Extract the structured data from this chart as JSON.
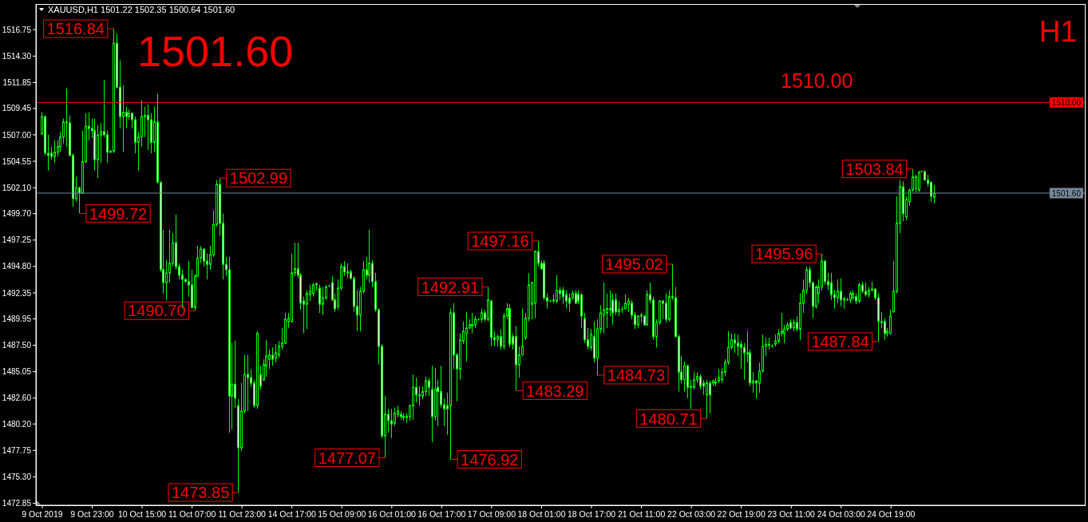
{
  "chart_data": {
    "type": "candlestick",
    "title": "XAUUSD,H1 1501.22 1502.35 1500.64 1501.60",
    "color": "#00ff00",
    "categories": [
      "9 Oct 2019",
      null,
      null,
      null,
      null,
      null,
      null,
      null,
      null,
      null,
      null,
      null,
      null,
      null,
      null,
      null,
      "9 Oct 23:00",
      null,
      null,
      null,
      null,
      null,
      null,
      null,
      null,
      null,
      null,
      null,
      null,
      null,
      null,
      null,
      "10 Oct 15:00",
      null,
      null,
      null,
      null,
      null,
      null,
      null,
      null,
      null,
      null,
      null,
      null,
      null,
      null,
      null,
      "11 Oct 07:00",
      null,
      null,
      null,
      null,
      null,
      null,
      null,
      null,
      null,
      null,
      null,
      null,
      null,
      null,
      null,
      "11 Oct 23:00",
      null,
      null,
      null,
      null,
      null,
      null,
      null,
      null,
      null,
      null,
      null,
      null,
      null,
      null,
      null,
      "14 Oct 17:00",
      null,
      null,
      null,
      null,
      null,
      null,
      null,
      null,
      null,
      null,
      null,
      null,
      null,
      null,
      null,
      "15 Oct 09:00",
      null,
      null,
      null,
      null,
      null,
      null,
      null,
      null,
      null,
      null,
      null,
      null,
      null,
      null,
      null,
      "16 Oct 01:00",
      null,
      null,
      null,
      null,
      null,
      null,
      null,
      null,
      null,
      null,
      null,
      null,
      null,
      null,
      null,
      "16 Oct 17:00",
      null,
      null,
      null,
      null,
      null,
      null,
      null,
      null,
      null,
      null,
      null,
      null,
      null,
      null,
      null,
      "17 Oct 09:00",
      null,
      null,
      null,
      null,
      null,
      null,
      null,
      null,
      null,
      null,
      null,
      null,
      null,
      null,
      null,
      "18 Oct 01:00",
      null,
      null,
      null,
      null,
      null,
      null,
      null,
      null,
      null,
      null,
      null,
      null,
      null,
      null,
      null,
      "18 Oct 17:00",
      null,
      null,
      null,
      null,
      null,
      null,
      null,
      null,
      null,
      null,
      null,
      null,
      null,
      null,
      null,
      "21 Oct 11:00",
      null,
      null,
      null,
      null,
      null,
      null,
      null,
      null,
      null,
      null,
      null,
      null,
      null,
      null,
      null,
      "22 Oct 03:00",
      null,
      null,
      null,
      null,
      null,
      null,
      null,
      null,
      null,
      null,
      null,
      null,
      null,
      null,
      null,
      "22 Oct 19:00",
      null,
      null,
      null,
      null,
      null,
      null,
      null,
      null,
      null,
      null,
      null,
      null,
      null,
      null,
      null,
      "23 Oct 11:00",
      null,
      null,
      null,
      null,
      null,
      null,
      null,
      null,
      null,
      null,
      null,
      null,
      null,
      null,
      null,
      "24 Oct 03:00",
      null,
      null,
      null,
      null,
      null,
      null,
      null,
      null,
      null,
      null,
      null,
      null,
      null,
      null,
      null,
      "24 Oct 19:00",
      null,
      null,
      null,
      null,
      null,
      null,
      null,
      null,
      null,
      null,
      null,
      null,
      null,
      null
    ],
    "ohlc": [
      [
        1507.1,
        1509.1,
        1507.0,
        1508.7
      ],
      [
        1508.7,
        1508.8,
        1505.1,
        1505.3
      ],
      [
        1505.3,
        1507.0,
        1503.7,
        1505.1
      ],
      [
        1505.3,
        1505.9,
        1504.7,
        1505.0
      ],
      [
        1505.0,
        1506.5,
        1504.4,
        1505.4
      ],
      [
        1505.4,
        1506.5,
        1505.0,
        1505.9
      ],
      [
        1505.9,
        1507.3,
        1505.4,
        1506.8
      ],
      [
        1506.8,
        1508.5,
        1506.2,
        1508.2
      ],
      [
        1508.2,
        1511.3,
        1505.9,
        1508.1
      ],
      [
        1508.1,
        1508.8,
        1505.0,
        1505.1
      ],
      [
        1505.1,
        1505.3,
        1500.3,
        1501.1
      ],
      [
        1501.1,
        1503.1,
        1500.8,
        1502.1
      ],
      [
        1502.1,
        1502.2,
        1499.72,
        1501.6
      ],
      [
        1501.6,
        1507.4,
        1501.6,
        1504.5
      ],
      [
        1504.5,
        1509.0,
        1504.4,
        1507.8
      ],
      [
        1507.8,
        1509.1,
        1506.5,
        1507.6
      ],
      [
        1507.6,
        1508.5,
        1506.7,
        1507.4
      ],
      [
        1507.4,
        1508.5,
        1503.7,
        1504.7
      ],
      [
        1504.7,
        1507.9,
        1503.0,
        1507.0
      ],
      [
        1507.0,
        1508.1,
        1504.4,
        1507.3
      ],
      [
        1507.3,
        1512.1,
        1506.8,
        1507.0
      ],
      [
        1507.0,
        1507.4,
        1504.4,
        1505.4
      ],
      [
        1505.4,
        1505.6,
        1505.3,
        1505.5
      ],
      [
        1505.5,
        1516.84,
        1505.3,
        1515.5
      ],
      [
        1515.5,
        1516.4,
        1511.3,
        1511.4
      ],
      [
        1511.4,
        1513.9,
        1507.6,
        1508.7
      ],
      [
        1508.7,
        1511.6,
        1505.4,
        1509.1
      ],
      [
        1509.1,
        1509.6,
        1507.6,
        1508.7
      ],
      [
        1508.7,
        1509.4,
        1508.4,
        1509.0
      ],
      [
        1509.0,
        1509.1,
        1507.6,
        1508.4
      ],
      [
        1508.4,
        1508.7,
        1505.3,
        1506.3
      ],
      [
        1506.3,
        1507.3,
        1503.7,
        1506.8
      ],
      [
        1506.8,
        1510.2,
        1505.9,
        1508.7
      ],
      [
        1508.7,
        1509.6,
        1506.8,
        1508.8
      ],
      [
        1508.8,
        1509.8,
        1505.6,
        1508.4
      ],
      [
        1508.4,
        1509.0,
        1505.3,
        1506.3
      ],
      [
        1506.3,
        1509.6,
        1505.4,
        1508.2
      ],
      [
        1508.2,
        1510.8,
        1502.5,
        1502.6
      ],
      [
        1502.6,
        1502.7,
        1494.3,
        1494.5
      ],
      [
        1494.5,
        1498.2,
        1492.3,
        1493.3
      ],
      [
        1493.3,
        1495.4,
        1491.7,
        1494.2
      ],
      [
        1494.2,
        1498.2,
        1493.3,
        1495.1
      ],
      [
        1495.1,
        1497.9,
        1494.8,
        1497.0
      ],
      [
        1497.0,
        1499.6,
        1494.5,
        1494.8
      ],
      [
        1494.8,
        1495.1,
        1493.6,
        1494.0
      ],
      [
        1494.0,
        1494.5,
        1490.9,
        1493.6
      ],
      [
        1493.6,
        1493.7,
        1493.3,
        1493.4
      ],
      [
        1493.4,
        1495.3,
        1492.0,
        1493.1
      ],
      [
        1493.1,
        1494.5,
        1490.9,
        1491.0
      ],
      [
        1491.0,
        1494.1,
        1490.7,
        1493.9
      ],
      [
        1493.9,
        1496.7,
        1493.9,
        1495.6
      ],
      [
        1495.6,
        1496.7,
        1495.1,
        1496.4
      ],
      [
        1496.4,
        1496.5,
        1494.8,
        1495.3
      ],
      [
        1495.3,
        1496.0,
        1493.6,
        1495.0
      ],
      [
        1495.0,
        1496.7,
        1494.5,
        1495.9
      ],
      [
        1495.9,
        1500.0,
        1495.7,
        1498.7
      ],
      [
        1498.7,
        1502.8,
        1498.5,
        1502.4
      ],
      [
        1502.4,
        1502.99,
        1497.6,
        1498.8
      ],
      [
        1498.8,
        1499.7,
        1493.6,
        1495.0
      ],
      [
        1495.0,
        1495.7,
        1493.9,
        1494.5
      ],
      [
        1494.5,
        1495.7,
        1479.4,
        1482.8
      ],
      [
        1482.8,
        1487.7,
        1479.7,
        1483.9
      ],
      [
        1483.9,
        1487.9,
        1481.7,
        1482.6
      ],
      [
        1481.9,
        1482.5,
        1473.85,
        1478.0
      ],
      [
        1478.0,
        1484.0,
        1477.7,
        1481.4
      ],
      [
        1481.4,
        1486.6,
        1481.2,
        1484.8
      ],
      [
        1484.8,
        1486.6,
        1481.4,
        1484.5
      ],
      [
        1484.5,
        1485.3,
        1483.6,
        1484.0
      ],
      [
        1484.0,
        1484.3,
        1481.7,
        1481.9
      ],
      [
        1481.9,
        1488.8,
        1481.6,
        1488.6
      ],
      [
        1484.8,
        1485.6,
        1483.4,
        1483.7
      ],
      [
        1484.3,
        1486.2,
        1484.2,
        1485.7
      ],
      [
        1485.6,
        1488.0,
        1484.6,
        1486.5
      ],
      [
        1486.2,
        1487.1,
        1485.3,
        1486.6
      ],
      [
        1486.6,
        1487.3,
        1485.6,
        1486.2
      ],
      [
        1486.3,
        1487.6,
        1485.9,
        1486.8
      ],
      [
        1486.6,
        1487.9,
        1486.3,
        1487.4
      ],
      [
        1487.4,
        1489.1,
        1487.1,
        1487.7
      ],
      [
        1487.7,
        1490.5,
        1487.6,
        1489.9
      ],
      [
        1489.7,
        1490.5,
        1489.1,
        1490.0
      ],
      [
        1489.7,
        1496.0,
        1489.6,
        1494.2
      ],
      [
        1494.2,
        1497.0,
        1493.9,
        1494.6
      ],
      [
        1494.6,
        1497.0,
        1493.7,
        1494.0
      ],
      [
        1494.0,
        1494.2,
        1490.8,
        1491.4
      ],
      [
        1491.6,
        1492.0,
        1488.6,
        1491.3
      ],
      [
        1491.3,
        1492.6,
        1489.0,
        1492.3
      ],
      [
        1492.2,
        1493.1,
        1491.6,
        1492.5
      ],
      [
        1492.3,
        1493.3,
        1492.0,
        1493.1
      ],
      [
        1493.1,
        1493.3,
        1492.6,
        1493.2
      ],
      [
        1492.8,
        1493.1,
        1490.5,
        1491.3
      ],
      [
        1491.3,
        1492.9,
        1490.3,
        1491.9
      ],
      [
        1491.9,
        1493.1,
        1491.7,
        1492.9
      ],
      [
        1493.0,
        1493.1,
        1492.9,
        1493.0
      ],
      [
        1493.3,
        1493.9,
        1491.6,
        1491.7
      ],
      [
        1491.7,
        1492.3,
        1490.6,
        1490.9
      ],
      [
        1491.1,
        1493.6,
        1490.8,
        1492.8
      ],
      [
        1492.8,
        1495.1,
        1492.6,
        1494.8
      ],
      [
        1494.8,
        1495.3,
        1493.9,
        1494.3
      ],
      [
        1494.3,
        1495.1,
        1493.7,
        1494.2
      ],
      [
        1494.3,
        1494.5,
        1493.6,
        1493.7
      ],
      [
        1493.7,
        1493.9,
        1490.6,
        1491.1
      ],
      [
        1491.1,
        1492.6,
        1488.8,
        1490.3
      ],
      [
        1490.3,
        1492.9,
        1488.8,
        1492.5
      ],
      [
        1492.5,
        1495.3,
        1492.3,
        1494.5
      ],
      [
        1494.5,
        1495.7,
        1493.6,
        1494.0
      ],
      [
        1494.0,
        1498.2,
        1493.3,
        1495.1
      ],
      [
        1495.1,
        1495.4,
        1492.9,
        1493.4
      ],
      [
        1493.4,
        1494.2,
        1490.6,
        1490.8
      ],
      [
        1490.8,
        1490.9,
        1485.7,
        1487.4
      ],
      [
        1487.4,
        1487.6,
        1478.9,
        1479.1
      ],
      [
        1479.1,
        1482.8,
        1477.07,
        1481.1
      ],
      [
        1481.1,
        1481.6,
        1479.4,
        1480.5
      ],
      [
        1480.5,
        1481.6,
        1478.9,
        1480.2
      ],
      [
        1480.3,
        1481.7,
        1480.0,
        1481.2
      ],
      [
        1481.1,
        1481.9,
        1480.8,
        1481.4
      ],
      [
        1481.1,
        1481.4,
        1480.6,
        1480.9
      ],
      [
        1480.9,
        1481.2,
        1480.5,
        1480.8
      ],
      [
        1480.8,
        1481.2,
        1480.3,
        1480.9
      ],
      [
        1480.9,
        1482.0,
        1480.5,
        1481.9
      ],
      [
        1481.9,
        1484.8,
        1480.6,
        1483.6
      ],
      [
        1483.6,
        1484.5,
        1482.2,
        1482.9
      ],
      [
        1482.9,
        1483.7,
        1481.9,
        1482.8
      ],
      [
        1482.8,
        1483.7,
        1482.5,
        1483.2
      ],
      [
        1483.2,
        1484.6,
        1482.8,
        1484.2
      ],
      [
        1484.2,
        1484.5,
        1482.8,
        1483.6
      ],
      [
        1483.4,
        1485.6,
        1478.5,
        1480.9
      ],
      [
        1480.9,
        1485.4,
        1480.5,
        1483.4
      ],
      [
        1483.6,
        1484.3,
        1480.0,
        1483.2
      ],
      [
        1483.2,
        1485.6,
        1481.7,
        1482.0
      ],
      [
        1482.0,
        1482.6,
        1480.0,
        1481.6
      ],
      [
        1481.9,
        1483.1,
        1479.2,
        1481.6
      ],
      [
        1481.9,
        1490.9,
        1476.92,
        1490.5
      ],
      [
        1490.5,
        1491.4,
        1485.3,
        1486.6
      ],
      [
        1486.6,
        1486.8,
        1482.3,
        1485.3
      ],
      [
        1485.3,
        1488.6,
        1484.3,
        1488.0
      ],
      [
        1487.9,
        1489.7,
        1487.6,
        1488.8
      ],
      [
        1488.6,
        1490.6,
        1486.0,
        1489.1
      ],
      [
        1489.1,
        1489.9,
        1489.0,
        1489.4
      ],
      [
        1489.4,
        1490.5,
        1488.6,
        1489.3
      ],
      [
        1489.4,
        1490.2,
        1489.1,
        1489.9
      ],
      [
        1489.9,
        1490.0,
        1489.8,
        1489.9
      ],
      [
        1489.9,
        1490.9,
        1489.6,
        1490.5
      ],
      [
        1490.5,
        1490.8,
        1489.7,
        1489.9
      ],
      [
        1489.9,
        1492.91,
        1489.7,
        1491.7
      ],
      [
        1491.6,
        1491.7,
        1487.4,
        1488.2
      ],
      [
        1488.2,
        1488.8,
        1487.4,
        1488.0
      ],
      [
        1488.0,
        1488.5,
        1487.4,
        1488.3
      ],
      [
        1488.3,
        1489.0,
        1487.1,
        1487.4
      ],
      [
        1487.4,
        1490.5,
        1487.1,
        1490.2
      ],
      [
        1490.2,
        1491.4,
        1489.9,
        1490.9
      ],
      [
        1490.9,
        1491.3,
        1487.3,
        1487.6
      ],
      [
        1488.3,
        1488.6,
        1487.1,
        1487.6
      ],
      [
        1488.3,
        1489.3,
        1483.29,
        1485.7
      ],
      [
        1485.7,
        1487.4,
        1484.5,
        1486.6
      ],
      [
        1486.6,
        1490.9,
        1486.6,
        1487.4
      ],
      [
        1488.2,
        1490.5,
        1488.0,
        1490.0
      ],
      [
        1490.0,
        1494.2,
        1489.7,
        1493.1
      ],
      [
        1491.3,
        1493.4,
        1489.9,
        1493.3
      ],
      [
        1491.4,
        1496.3,
        1490.0,
        1496.2
      ],
      [
        1496.2,
        1497.16,
        1494.8,
        1495.1
      ],
      [
        1495.1,
        1495.4,
        1494.5,
        1494.6
      ],
      [
        1495.1,
        1495.4,
        1491.7,
        1491.9
      ],
      [
        1491.9,
        1492.3,
        1490.9,
        1491.6
      ],
      [
        1491.6,
        1491.7,
        1491.5,
        1491.6
      ],
      [
        1491.6,
        1492.2,
        1491.4,
        1491.7
      ],
      [
        1491.6,
        1494.0,
        1491.4,
        1492.6
      ],
      [
        1492.6,
        1492.9,
        1491.7,
        1492.3
      ],
      [
        1492.6,
        1492.9,
        1491.3,
        1492.0
      ],
      [
        1492.2,
        1492.6,
        1490.9,
        1491.6
      ],
      [
        1491.9,
        1492.3,
        1490.6,
        1491.4
      ],
      [
        1491.9,
        1492.6,
        1491.7,
        1492.3
      ],
      [
        1492.3,
        1492.6,
        1491.3,
        1491.4
      ],
      [
        1492.2,
        1492.6,
        1491.3,
        1491.6
      ],
      [
        1492.2,
        1492.3,
        1489.1,
        1490.2
      ],
      [
        1490.0,
        1490.5,
        1487.7,
        1488.0
      ],
      [
        1488.0,
        1489.1,
        1487.1,
        1487.4
      ],
      [
        1487.3,
        1489.0,
        1487.0,
        1488.5
      ],
      [
        1488.3,
        1489.7,
        1485.9,
        1486.3
      ],
      [
        1486.3,
        1489.9,
        1484.73,
        1489.0
      ],
      [
        1489.0,
        1491.2,
        1488.6,
        1490.5
      ],
      [
        1490.3,
        1493.3,
        1488.6,
        1490.8
      ],
      [
        1490.5,
        1492.3,
        1489.1,
        1490.9
      ],
      [
        1490.9,
        1492.6,
        1490.2,
        1490.8
      ],
      [
        1491.7,
        1492.3,
        1489.4,
        1490.5
      ],
      [
        1491.7,
        1492.3,
        1490.3,
        1490.6
      ],
      [
        1490.6,
        1491.6,
        1490.2,
        1490.8
      ],
      [
        1490.8,
        1491.1,
        1490.5,
        1490.8
      ],
      [
        1490.9,
        1492.2,
        1490.8,
        1491.4
      ],
      [
        1491.3,
        1491.9,
        1490.6,
        1491.6
      ],
      [
        1491.4,
        1491.7,
        1489.9,
        1490.3
      ],
      [
        1490.3,
        1490.6,
        1489.0,
        1489.4
      ],
      [
        1489.4,
        1490.3,
        1489.1,
        1490.2
      ],
      [
        1490.2,
        1490.5,
        1489.6,
        1490.3
      ],
      [
        1490.2,
        1490.3,
        1489.3,
        1489.4
      ],
      [
        1489.4,
        1492.6,
        1489.3,
        1492.2
      ],
      [
        1492.2,
        1493.3,
        1491.4,
        1491.7
      ],
      [
        1491.7,
        1492.0,
        1488.0,
        1488.3
      ],
      [
        1488.3,
        1489.9,
        1487.3,
        1489.6
      ],
      [
        1489.6,
        1491.7,
        1489.4,
        1491.6
      ],
      [
        1491.6,
        1491.7,
        1489.9,
        1491.4
      ],
      [
        1491.4,
        1492.3,
        1489.6,
        1489.9
      ],
      [
        1489.9,
        1492.6,
        1489.7,
        1492.0
      ],
      [
        1492.0,
        1495.02,
        1491.7,
        1491.9
      ],
      [
        1491.9,
        1492.9,
        1488.2,
        1488.3
      ],
      [
        1488.3,
        1488.5,
        1483.2,
        1485.0
      ],
      [
        1485.0,
        1486.5,
        1484.0,
        1484.3
      ],
      [
        1484.3,
        1486.0,
        1483.2,
        1485.6
      ],
      [
        1485.6,
        1485.7,
        1482.6,
        1483.6
      ],
      [
        1483.6,
        1484.3,
        1481.6,
        1483.7
      ],
      [
        1483.6,
        1485.0,
        1483.4,
        1484.3
      ],
      [
        1484.3,
        1485.0,
        1484.0,
        1484.6
      ],
      [
        1484.6,
        1484.8,
        1483.4,
        1483.7
      ],
      [
        1484.0,
        1484.3,
        1482.9,
        1483.7
      ],
      [
        1482.9,
        1484.3,
        1480.71,
        1484.0
      ],
      [
        1484.0,
        1484.2,
        1481.2,
        1482.9
      ],
      [
        1484.0,
        1484.3,
        1483.7,
        1484.2
      ],
      [
        1484.1,
        1484.5,
        1483.7,
        1484.0
      ],
      [
        1484.2,
        1485.3,
        1484.0,
        1484.5
      ],
      [
        1484.3,
        1485.4,
        1484.0,
        1485.0
      ],
      [
        1485.0,
        1486.2,
        1484.6,
        1485.9
      ],
      [
        1485.9,
        1488.8,
        1485.7,
        1487.3
      ],
      [
        1487.3,
        1488.6,
        1487.1,
        1488.0
      ],
      [
        1488.0,
        1488.6,
        1486.8,
        1487.7
      ],
      [
        1487.7,
        1488.5,
        1486.5,
        1487.4
      ],
      [
        1487.6,
        1487.9,
        1485.3,
        1487.3
      ],
      [
        1487.3,
        1487.7,
        1484.3,
        1486.8
      ],
      [
        1486.8,
        1488.8,
        1485.9,
        1486.7
      ],
      [
        1486.8,
        1487.1,
        1483.7,
        1484.0
      ],
      [
        1484.0,
        1485.0,
        1483.1,
        1484.2
      ],
      [
        1484.2,
        1484.3,
        1482.6,
        1484.0
      ],
      [
        1484.0,
        1485.9,
        1483.1,
        1485.1
      ],
      [
        1485.1,
        1488.5,
        1485.0,
        1487.4
      ],
      [
        1487.4,
        1488.2,
        1486.5,
        1487.6
      ],
      [
        1487.6,
        1488.2,
        1487.1,
        1487.5
      ],
      [
        1487.4,
        1487.6,
        1487.3,
        1487.4
      ],
      [
        1487.6,
        1488.5,
        1487.4,
        1487.9
      ],
      [
        1487.9,
        1489.0,
        1487.7,
        1488.6
      ],
      [
        1488.6,
        1490.5,
        1488.3,
        1488.8
      ],
      [
        1488.6,
        1489.4,
        1487.7,
        1489.0
      ],
      [
        1489.0,
        1489.6,
        1488.8,
        1489.4
      ],
      [
        1489.6,
        1489.9,
        1489.0,
        1489.1
      ],
      [
        1489.1,
        1489.9,
        1488.8,
        1489.6
      ],
      [
        1489.6,
        1490.2,
        1488.8,
        1489.0
      ],
      [
        1489.0,
        1492.3,
        1488.0,
        1491.4
      ],
      [
        1491.4,
        1493.6,
        1490.5,
        1492.6
      ],
      [
        1492.6,
        1494.8,
        1492.3,
        1494.5
      ],
      [
        1494.5,
        1494.8,
        1492.9,
        1493.3
      ],
      [
        1493.3,
        1493.4,
        1490.0,
        1491.1
      ],
      [
        1491.1,
        1493.1,
        1490.9,
        1492.9
      ],
      [
        1492.3,
        1493.6,
        1491.4,
        1492.9
      ],
      [
        1492.9,
        1495.96,
        1492.6,
        1495.3
      ],
      [
        1495.3,
        1495.4,
        1493.1,
        1493.4
      ],
      [
        1493.4,
        1494.2,
        1492.6,
        1493.1
      ],
      [
        1493.3,
        1494.2,
        1491.7,
        1492.2
      ],
      [
        1492.2,
        1492.6,
        1490.9,
        1491.9
      ],
      [
        1491.9,
        1493.6,
        1491.4,
        1492.5
      ],
      [
        1492.5,
        1493.7,
        1491.1,
        1491.7
      ],
      [
        1491.8,
        1492.0,
        1490.9,
        1491.7
      ],
      [
        1491.7,
        1491.9,
        1491.6,
        1491.7
      ],
      [
        1491.7,
        1492.5,
        1491.4,
        1492.3
      ],
      [
        1491.9,
        1492.6,
        1491.7,
        1492.3
      ],
      [
        1492.0,
        1492.3,
        1491.3,
        1491.6
      ],
      [
        1491.6,
        1493.3,
        1491.4,
        1493.1
      ],
      [
        1493.1,
        1493.4,
        1492.3,
        1492.5
      ],
      [
        1492.5,
        1493.3,
        1492.0,
        1492.2
      ],
      [
        1492.2,
        1492.9,
        1491.9,
        1492.6
      ],
      [
        1492.6,
        1493.4,
        1492.5,
        1492.7
      ],
      [
        1492.7,
        1492.8,
        1491.7,
        1491.9
      ],
      [
        1491.9,
        1492.3,
        1487.84,
        1489.7
      ],
      [
        1489.7,
        1490.6,
        1489.1,
        1489.6
      ],
      [
        1489.7,
        1490.0,
        1488.0,
        1488.6
      ],
      [
        1488.6,
        1489.1,
        1488.3,
        1488.8
      ],
      [
        1488.6,
        1490.8,
        1488.5,
        1490.2
      ],
      [
        1490.6,
        1495.3,
        1490.5,
        1492.5
      ],
      [
        1492.5,
        1501.3,
        1492.3,
        1498.8
      ],
      [
        1498.8,
        1502.8,
        1497.9,
        1502.2
      ],
      [
        1502.2,
        1502.7,
        1499.0,
        1499.7
      ],
      [
        1499.4,
        1501.3,
        1499.1,
        1501.0
      ],
      [
        1500.8,
        1502.0,
        1500.4,
        1501.9
      ],
      [
        1501.9,
        1503.84,
        1501.7,
        1503.1
      ],
      [
        1502.0,
        1503.3,
        1501.7,
        1503.1
      ],
      [
        1501.9,
        1503.7,
        1501.7,
        1503.5
      ],
      [
        1503.6,
        1503.7,
        1503.5,
        1503.6
      ],
      [
        1503.6,
        1503.7,
        1502.8,
        1502.8
      ],
      [
        1502.8,
        1503.3,
        1502.2,
        1502.5
      ],
      [
        1502.6,
        1502.7,
        1500.8,
        1501.3
      ],
      [
        1501.22,
        1502.35,
        1500.64,
        1501.6
      ]
    ],
    "ylim": [
      1472.67,
      1519.13
    ],
    "yticks": [
      1472.85,
      {
        "value": 1475.3,
        "label": "1475.30"
      },
      1477.75,
      {
        "value": 1480.2,
        "label": "1480.20"
      },
      {
        "value": 1482.6,
        "label": "1482.60"
      },
      1485.05,
      {
        "value": 1487.5,
        "label": "1487.50"
      },
      1489.95,
      1492.35,
      {
        "value": 1494.8,
        "label": "1494.80"
      },
      1497.25,
      {
        "value": 1499.7,
        "label": "1499.70"
      },
      {
        "value": 1502.1,
        "label": "1502.10"
      },
      1504.55,
      {
        "value": 1507,
        "label": "1507.00"
      },
      1509.45,
      1511.85,
      {
        "value": 1514.3,
        "label": "1514.30"
      },
      1516.75
    ],
    "ref_lines": [
      {
        "axis": "y",
        "value": 1510,
        "label": "1510.00",
        "color": "#ff0000"
      },
      {
        "axis": "y",
        "value": 1501.6,
        "label": "1501.60",
        "color": "#778899"
      }
    ],
    "annotations": [
      "1501.60",
      "1510.00",
      "H1",
      "1516.84",
      "1499.72",
      "1490.70",
      "1502.99",
      "1473.85",
      "1477.07",
      "1476.92",
      "1492.91",
      "1483.29",
      "1497.16",
      "1484.73",
      "1495.02",
      "1480.71",
      "1495.96",
      "1487.84",
      "1503.84"
    ]
  }
}
